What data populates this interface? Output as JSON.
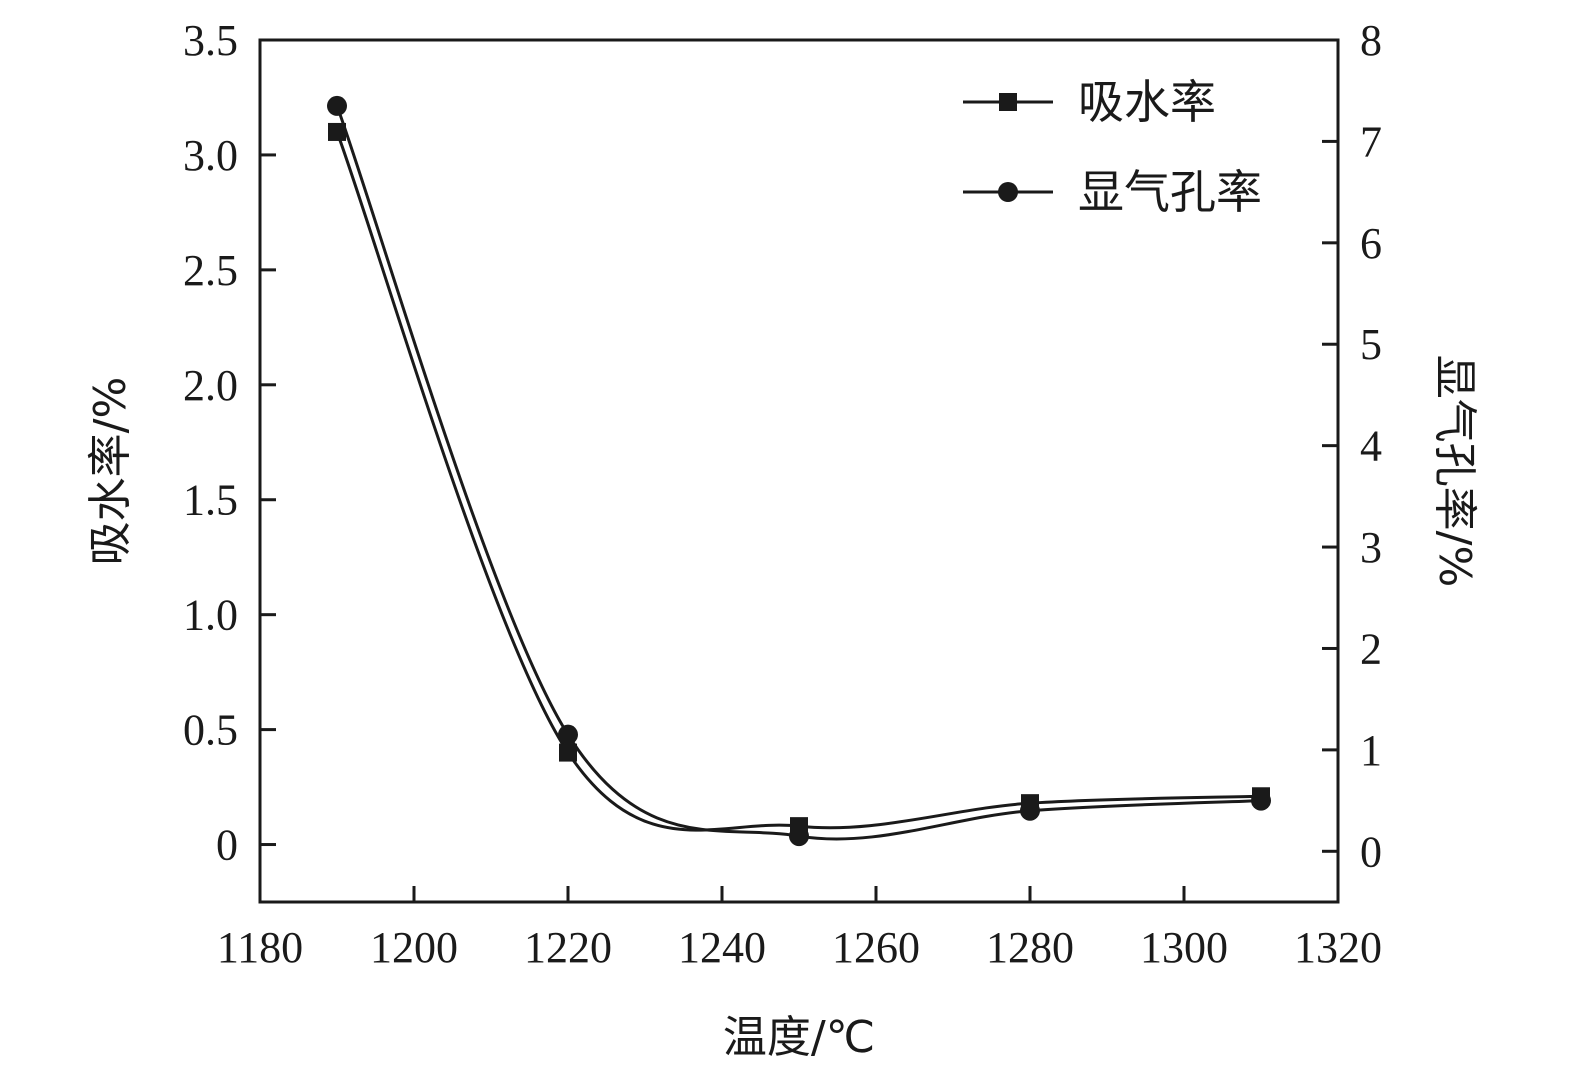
{
  "chart_data": {
    "type": "line",
    "xlabel": "温度/℃",
    "ylabel": "吸水率/%",
    "y2label": "显气孔率/%",
    "xlim": [
      1180,
      1320
    ],
    "ylim": [
      -0.25,
      3.5
    ],
    "y2lim": [
      -0.5,
      8
    ],
    "x_ticks": [
      1180,
      1200,
      1220,
      1240,
      1260,
      1280,
      1300,
      1320
    ],
    "y_ticks": [
      {
        "value": 0,
        "label": "0"
      },
      {
        "value": 0.5,
        "label": "0.5"
      },
      {
        "value": 1.0,
        "label": "1.0"
      },
      {
        "value": 1.5,
        "label": "1.5"
      },
      {
        "value": 2.0,
        "label": "2.0"
      },
      {
        "value": 2.5,
        "label": "2.5"
      },
      {
        "value": 3.0,
        "label": "3.0"
      },
      {
        "value": 3.5,
        "label": "3.5"
      }
    ],
    "y2_ticks": [
      {
        "value": 0,
        "label": "0"
      },
      {
        "value": 1,
        "label": "1"
      },
      {
        "value": 2,
        "label": "2"
      },
      {
        "value": 3,
        "label": "3"
      },
      {
        "value": 4,
        "label": "4"
      },
      {
        "value": 5,
        "label": "5"
      },
      {
        "value": 6,
        "label": "6"
      },
      {
        "value": 7,
        "label": "7"
      },
      {
        "value": 8,
        "label": "8"
      }
    ],
    "series": [
      {
        "name": "吸水率",
        "axis": "left",
        "marker": "square",
        "x": [
          1190,
          1220,
          1250,
          1280,
          1310
        ],
        "values": [
          3.1,
          0.4,
          0.08,
          0.18,
          0.21
        ]
      },
      {
        "name": "显气孔率",
        "axis": "right",
        "marker": "circle",
        "x": [
          1190,
          1220,
          1250,
          1280,
          1310
        ],
        "values": [
          7.35,
          1.15,
          0.15,
          0.4,
          0.5
        ]
      }
    ],
    "legend_position": "top-right",
    "grid": false,
    "color": "#1a1a1a"
  }
}
